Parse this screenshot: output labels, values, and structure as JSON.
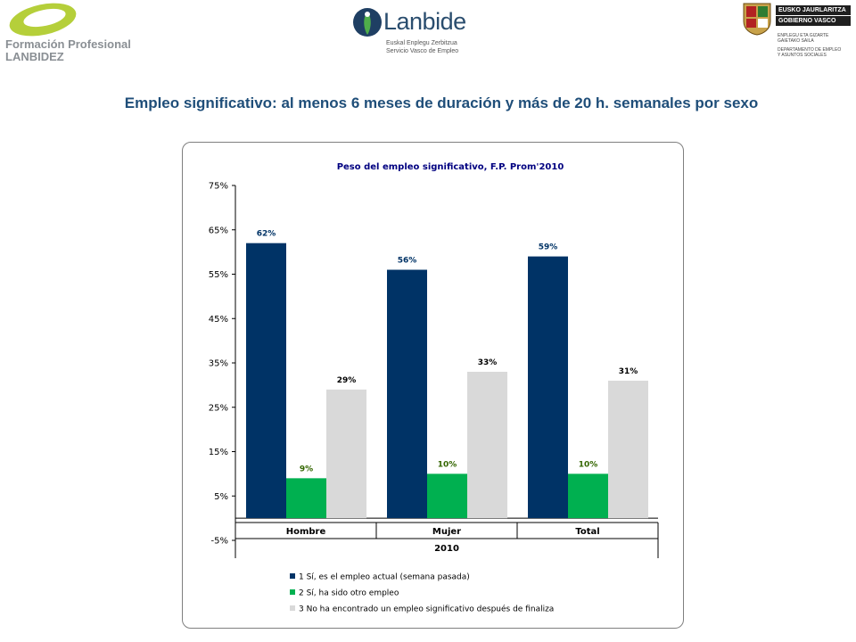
{
  "header": {
    "logo_left_line1": "Formación Profesional",
    "logo_left_line2": "LANBIDEZ",
    "logo_center_name": "Lanbide",
    "logo_center_sub1": "Euskal Enplegu Zerbitzua",
    "logo_center_sub2": "Servicio Vasco de Empleo",
    "logo_right_line1": "EUSKO JAURLARITZA",
    "logo_right_line2": "GOBIERNO VASCO",
    "logo_right_small1": "ENPLEGU ETA GIZARTE",
    "logo_right_small2": "GAIETAKO SAILA",
    "logo_right_small3": "DEPARTAMENTO DE EMPLEO",
    "logo_right_small4": "Y ASUNTOS SOCIALES"
  },
  "page_title": "Empleo significativo: al menos 6 meses de duración y más de 20 h. semanales por sexo",
  "colors": {
    "series1": "#003366",
    "series2": "#00b050",
    "series3": "#d9d9d9",
    "title": "#1f4e79",
    "label1": "#003366",
    "label2": "#336600",
    "label3": "#000000"
  },
  "chart_data": {
    "type": "bar",
    "title": "Peso del empleo significativo, F.P. Prom'2010",
    "categories": [
      "Hombre",
      "Mujer",
      "Total"
    ],
    "group_label": "2010",
    "ylim": [
      -5,
      75
    ],
    "yticks": [
      "75%",
      "65%",
      "55%",
      "45%",
      "35%",
      "25%",
      "15%",
      "5%",
      "-5%"
    ],
    "ytick_values": [
      75,
      65,
      55,
      45,
      35,
      25,
      15,
      5,
      -5
    ],
    "grid": false,
    "legend_position": "bottom",
    "series": [
      {
        "name": "1  Sí, es el empleo actual (semana pasada)",
        "values": [
          62,
          56,
          59
        ],
        "labels": [
          "62%",
          "56%",
          "59%"
        ]
      },
      {
        "name": "2  Sí, ha sido otro empleo",
        "values": [
          9,
          10,
          10
        ],
        "labels": [
          "9%",
          "10%",
          "10%"
        ]
      },
      {
        "name": "3  No ha encontrado un empleo significativo después de finaliza",
        "values": [
          29,
          33,
          31
        ],
        "labels": [
          "29%",
          "33%",
          "31%"
        ]
      }
    ]
  }
}
